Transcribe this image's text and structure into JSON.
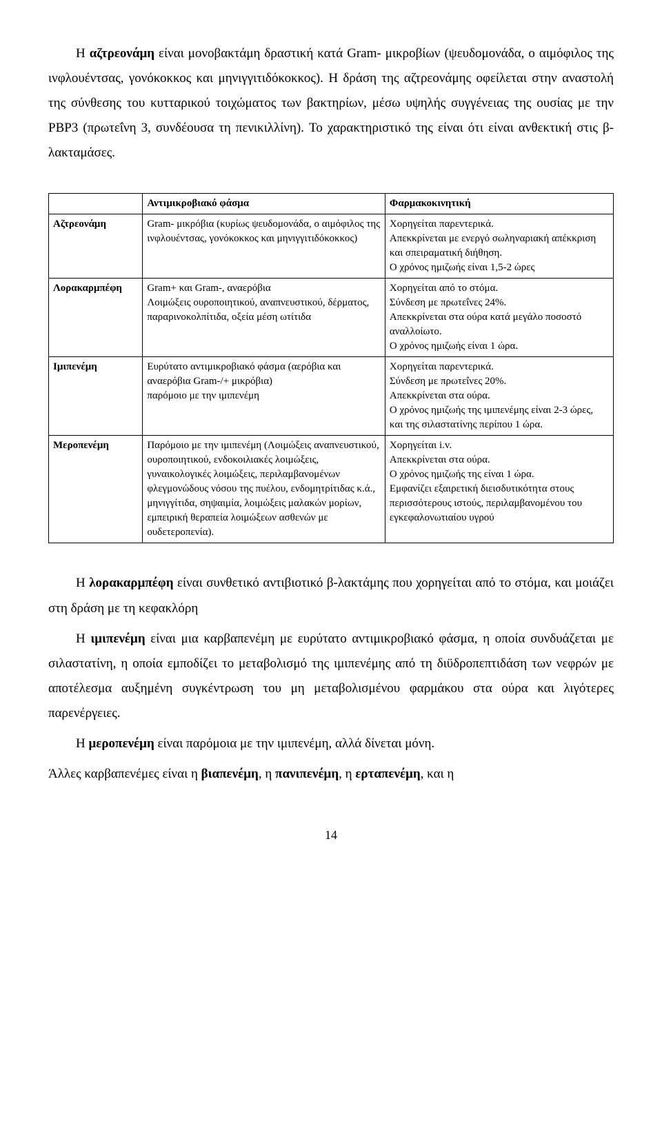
{
  "intro": {
    "p1_a": "Η ",
    "p1_bold": "αζτρεονάμη",
    "p1_b": " είναι μονοβακτάμη δραστική κατά Gram- μικροβίων (ψευδομονάδα, ο αιμόφιλος της ινφλουέντσας, γονόκοκκος και μηνιγγιτιδόκοκκος). Η δράση της αζτρεονάμης οφείλεται στην αναστολή της σύνθεσης του κυτταρικού τοιχώματος των βακτηρίων, μέσω υψηλής συγγένειας της ουσίας με την PBP3 (πρωτεΐνη 3, συνδέουσα τη πενικιλλίνη). Το χαρακτηριστικό της είναι ότι είναι ανθεκτική στις β-λακταμάσες."
  },
  "table": {
    "headers": {
      "col1": "",
      "col2": "Αντιμικροβιακό φάσμα",
      "col3": "Φαρμακοκινητική"
    },
    "rows": [
      {
        "name": "Αζτρεονάμη",
        "spectrum": "Gram- μικρόβια (κυρίως ψευδομονάδα, ο αιμόφιλος της ινφλουέντσας, γονόκοκκος και μηνιγγιτιδόκοκκος)",
        "pk": "Χορηγείται παρεντερικά.\nΑπεκκρίνεται με ενεργό σωληναριακή απέκκριση και σπειραματική διήθηση.\nΟ χρόνος ημιζωής είναι 1,5-2 ώρες"
      },
      {
        "name": "Λορακαρμπέφη",
        "spectrum": "Gram+ και Gram-, αναερόβια\nΛοιμώξεις ουροποιητικού, αναπνευστικού, δέρματος, παραρινοκολπίτιδα, οξεία μέση ωτίτιδα",
        "pk": "Χορηγείται από το στόμα.\nΣύνδεση με πρωτεΐνες 24%.\nΑπεκκρίνεται στα ούρα κατά μεγάλο ποσοστό αναλλοίωτο.\nΟ χρόνος ημιζωής είναι 1 ώρα."
      },
      {
        "name": "Ιμιπενέμη",
        "spectrum": "Ευρύτατο αντιμικροβιακό φάσμα (αερόβια και αναερόβια Gram-/+ μικρόβια)\nπαρόμοιο με την ιμιπενέμη",
        "pk": "Χορηγείται παρεντερικά.\nΣύνδεση με πρωτεΐνες 20%.\nΑπεκκρίνεται στα ούρα.\nΟ χρόνος ημιζωής της ιμιπενέμης είναι 2-3 ώρες, και της σιλαστατίνης περίπου 1 ώρα."
      },
      {
        "name": "Μεροπενέμη",
        "spectrum": "Παρόμοιο με την ιμιπενέμη (Λοιμώξεις αναπνευστικού, ουροποιητικού, ενδοκοιλιακές λοιμώξεις, γυναικολογικές λοιμώξεις, περιλαμβανομένων φλεγμονώδους νόσου της πυέλου, ενδομητρίτιδας κ.ά., μηνιγγίτιδα, σηψαιμία, λοιμώξεις μαλακών μορίων, εμπειρική θεραπεία λοιμώξεων ασθενών με ουδετεροπενία).",
        "pk": "Χορηγείται i.v.\nΑπεκκρίνεται στα ούρα.\nΟ χρόνος ημιζωής της είναι 1 ώρα.\nΕμφανίζει εξαιρετική διεισδυτικότητα στους περισσότερους ιστούς, περιλαμβανομένου του εγκεφαλονωτιαίου υγρού"
      }
    ]
  },
  "after": {
    "p1_a": "Η ",
    "p1_bold": "λορακαρμπέφη",
    "p1_b": " είναι συνθετικό αντιβιοτικό β-λακτάμης που χορηγείται από το στόμα, και μοιάζει στη δράση με τη κεφακλόρη",
    "p2_a": "Η ",
    "p2_bold": "ιμιπενέμη",
    "p2_b": " είναι μια καρβαπενέμη με ευρύτατο αντιμικροβιακό φάσμα, η οποία συνδυάζεται με σιλαστατίνη, η οποία εμποδίζει το μεταβολισμό της ιμιπενέμης από τη διϋδροπεπτιδάση των νεφρών με αποτέλεσμα αυξημένη συγκέντρωση του μη μεταβολισμένου φαρμάκου στα ούρα και λιγότερες παρενέργειες.",
    "p3_a": "Η ",
    "p3_bold": "μεροπενέμη",
    "p3_b": " είναι παρόμοια με την ιμιπενέμη, αλλά δίνεται μόνη.",
    "p4_a": "Άλλες καρβαπενέμες είναι η ",
    "p4_b1": "βιαπενέμη",
    "p4_c": ", η ",
    "p4_b2": "πανιπενέμη",
    "p4_d": ", η ",
    "p4_b3": "ερταπενέμη",
    "p4_e": ", και η"
  },
  "pagenum": "14"
}
